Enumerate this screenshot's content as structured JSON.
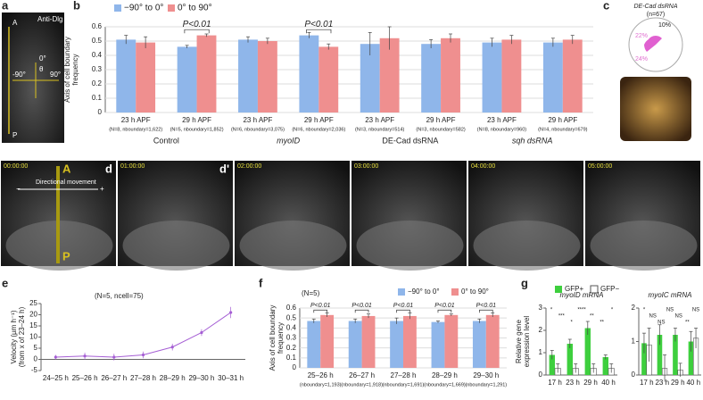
{
  "chart_data": [
    {
      "type": "bar",
      "panel": "b",
      "ylabel": [
        "Axis of cell boundary",
        "frequency"
      ],
      "categories": [
        "23 h APF",
        "29 h APF",
        "23 h APF",
        "29 h APF",
        "23 h APF",
        "29 h APF",
        "23 h APF",
        "29 h APF"
      ],
      "sublabels": [
        "(N=8, nboundary=1,622)",
        "(N=5, nboundary=1,852)",
        "(N=6, nboundary=3,075)",
        "(N=6, nboundary=2,036)",
        "(N=3, nboundary=514)",
        "(N=3, nboundary=582)",
        "(N=8, nboundary=960)",
        "(N=4, nboundary=679)"
      ],
      "groups": [
        "Control",
        "myoID",
        "DE-Cad dsRNA",
        "sqh dsRNA"
      ],
      "annotations": [
        "P<0.01",
        "P<0.01"
      ],
      "series": [
        {
          "name": "−90° to 0°",
          "color": "#8fb6ea",
          "values": [
            0.51,
            0.46,
            0.51,
            0.54,
            0.48,
            0.48,
            0.49,
            0.49
          ],
          "errors": [
            0.03,
            0.01,
            0.02,
            0.02,
            0.08,
            0.03,
            0.03,
            0.03
          ]
        },
        {
          "name": "0° to 90°",
          "color": "#ef8f8f",
          "values": [
            0.49,
            0.54,
            0.5,
            0.46,
            0.52,
            0.52,
            0.51,
            0.51
          ],
          "errors": [
            0.04,
            0.01,
            0.02,
            0.02,
            0.08,
            0.03,
            0.03,
            0.03
          ]
        }
      ],
      "ylim": [
        0,
        0.6
      ],
      "yticks": [
        0,
        0.1,
        0.2,
        0.3,
        0.4,
        0.5,
        0.6
      ],
      "grid": true
    },
    {
      "type": "line",
      "panel": "e",
      "ylabel": [
        "Velocity (µm h⁻¹)",
        "(from x of 23–24 h)"
      ],
      "annotations": [
        "(N=5, ncell=75)"
      ],
      "categories": [
        "24–25 h",
        "25–26 h",
        "26–27 h",
        "27–28 h",
        "28–29 h",
        "29–30 h",
        "30–31 h"
      ],
      "series": [
        {
          "name": null,
          "color": "#a55ed4",
          "values": [
            1,
            1.5,
            1,
            2,
            5.5,
            12,
            21
          ],
          "errors": [
            1,
            1.5,
            1.5,
            1.5,
            1.5,
            1.5,
            2.5
          ]
        }
      ],
      "ylim": [
        -5,
        25
      ],
      "yticks": [
        -5,
        0,
        5,
        10,
        15,
        20,
        25
      ],
      "grid": false
    },
    {
      "type": "bar",
      "panel": "f",
      "ylabel": [
        "Axis of cell boundary",
        "frequency"
      ],
      "categories": [
        "25–26 h",
        "26–27 h",
        "27–28 h",
        "28–29 h",
        "29–30 h"
      ],
      "sublabels": [
        "(nboundary=1,193)",
        "(nboundary=1,918)",
        "(nboundary=1,691)",
        "(nboundary=1,669)",
        "(nboundary=1,291)"
      ],
      "annotations": [
        "(N=5)",
        "P<0.01",
        "P<0.01",
        "P<0.01",
        "P<0.01",
        "P<0.01"
      ],
      "series": [
        {
          "name": "−90° to 0°",
          "color": "#8fb6ea",
          "values": [
            0.47,
            0.47,
            0.47,
            0.46,
            0.47
          ],
          "errors": [
            0.02,
            0.02,
            0.03,
            0.01,
            0.02
          ]
        },
        {
          "name": "0° to 90°",
          "color": "#ef8f8f",
          "values": [
            0.53,
            0.52,
            0.52,
            0.53,
            0.53
          ],
          "errors": [
            0.02,
            0.02,
            0.03,
            0.01,
            0.02
          ]
        }
      ],
      "ylim": [
        0,
        0.6
      ],
      "yticks": [
        0,
        0.1,
        0.2,
        0.3,
        0.4,
        0.5,
        0.6
      ],
      "grid": true
    },
    {
      "type": "bar",
      "panel": "g",
      "title": "myoID mRNA",
      "ylabel": [
        "Relative gene",
        "expression level"
      ],
      "categories": [
        "17 h",
        "23 h",
        "29 h",
        "40 h"
      ],
      "annotations": [
        "*",
        "***",
        "*",
        "****",
        "**",
        "**",
        "*"
      ],
      "series": [
        {
          "name": "GFP+",
          "color": "#3ecf3e",
          "values": [
            0.9,
            1.4,
            2.1,
            0.8
          ],
          "errors": [
            0.2,
            0.2,
            0.3,
            0.1
          ]
        },
        {
          "name": "GFP−",
          "color": "#ffffff",
          "values": [
            0.3,
            0.3,
            0.3,
            0.3
          ],
          "errors": [
            0.2,
            0.2,
            0.2,
            0.2
          ]
        }
      ],
      "ylim": [
        0,
        3
      ],
      "yticks": [
        0,
        1,
        2,
        3
      ],
      "grid": false
    },
    {
      "type": "bar",
      "panel": null,
      "title": "myoIC mRNA",
      "categories": [
        "17 h",
        "23 h",
        "29 h",
        "40 h"
      ],
      "annotations": [
        "*",
        "NS",
        "NS",
        "NS",
        "NS",
        "**",
        "NS"
      ],
      "series": [
        {
          "name": "GFP+",
          "color": "#3ecf3e",
          "values": [
            0.95,
            1.2,
            1.2,
            1.0
          ],
          "errors": [
            0.3,
            0.3,
            0.2,
            0.3
          ]
        },
        {
          "name": "GFP−",
          "color": "#ffffff",
          "values": [
            0.9,
            0.2,
            0.15,
            1.1
          ],
          "errors": [
            0.5,
            0.4,
            0.2,
            0.3
          ]
        }
      ],
      "ylim": [
        0,
        2
      ],
      "yticks": [
        0,
        1,
        2
      ],
      "grid": false
    }
  ],
  "panel_a": {
    "letter": "a",
    "stain": "Anti-Dlg",
    "top": "A",
    "bottom": "P",
    "zero": "0°",
    "right": "90°",
    "left": "-90°",
    "theta": "θ"
  },
  "panel_c": {
    "letter": "c",
    "title": "DE-Cad dsRNA",
    "n": "(n=67)",
    "labels": [
      "10%",
      "22%",
      "24%"
    ]
  },
  "panel_d": {
    "letter": "d",
    "letter2": "d'",
    "top": "A",
    "bottom": "P",
    "direction": "Directional movement",
    "minus": "−",
    "plus": "+",
    "times": [
      "00:00:00",
      "01:00:00",
      "02:00:00",
      "03:00:00",
      "04:00:00",
      "05:00:00"
    ]
  }
}
